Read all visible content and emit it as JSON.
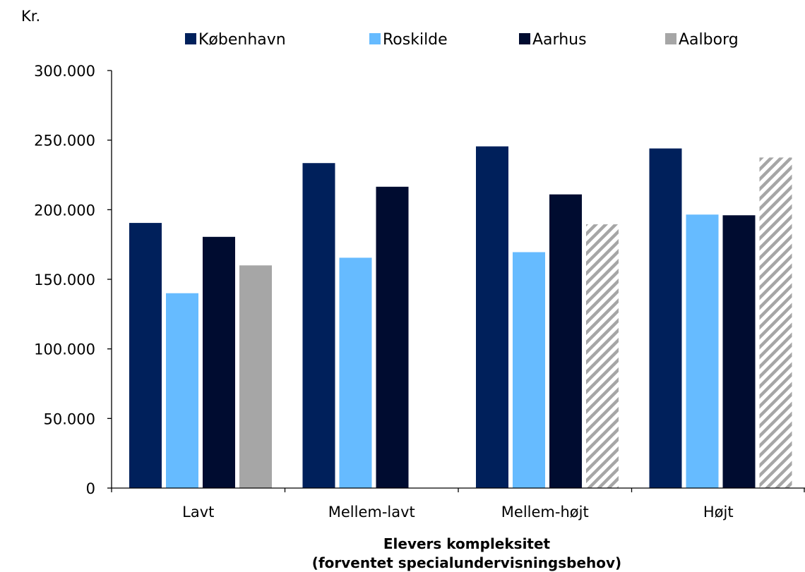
{
  "chart_data": {
    "type": "bar",
    "unit_label": "Kr.",
    "xlabel_line1": "Elevers kompleksitet",
    "xlabel_line2": "(forventet specialundervisningsbehov)",
    "ylabel": "",
    "ylim": [
      0,
      300000
    ],
    "yticks": [
      {
        "value": 0,
        "label": "0"
      },
      {
        "value": 50000,
        "label": "50.000"
      },
      {
        "value": 100000,
        "label": "100.000"
      },
      {
        "value": 150000,
        "label": "150.000"
      },
      {
        "value": 200000,
        "label": "200.000"
      },
      {
        "value": 250000,
        "label": "250.000"
      },
      {
        "value": 300000,
        "label": "300.000"
      }
    ],
    "categories": [
      "Lavt",
      "Mellem-lavt",
      "Mellem-højt",
      "Højt"
    ],
    "legend_position": "top",
    "grid": false,
    "series": [
      {
        "name": "København",
        "color": "#00205b",
        "values": [
          190500,
          233500,
          245500,
          244000
        ]
      },
      {
        "name": "Roskilde",
        "color": "#66bbff",
        "values": [
          140000,
          165500,
          169500,
          196500
        ]
      },
      {
        "name": "Aarhus",
        "color": "#000c30",
        "values": [
          180500,
          216500,
          211000,
          196000
        ]
      },
      {
        "name": "Aalborg",
        "color": "#a6a6a6",
        "values": [
          160000,
          null,
          189500,
          237500
        ],
        "hatched": [
          false,
          false,
          true,
          true
        ]
      }
    ]
  }
}
